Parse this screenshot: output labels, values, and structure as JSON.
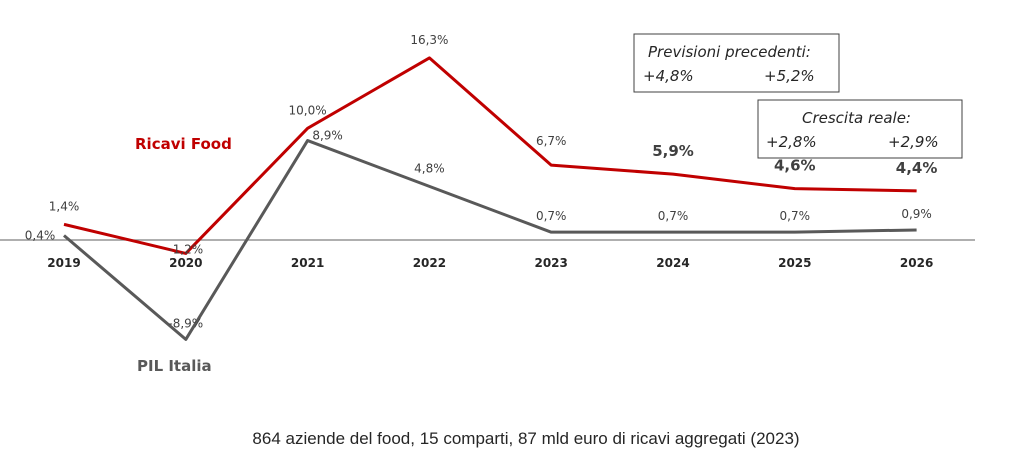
{
  "chart_data": {
    "type": "line",
    "categories": [
      "2019",
      "2020",
      "2021",
      "2022",
      "2023",
      "2024",
      "2025",
      "2026"
    ],
    "series": [
      {
        "name": "Ricavi Food",
        "color": "#c00000",
        "values": [
          1.4,
          -1.2,
          10.0,
          16.3,
          6.7,
          5.9,
          4.6,
          4.4
        ],
        "labels": [
          "1,4%",
          "-1,2%",
          "10,0%",
          "16,3%",
          "6,7%",
          "5,9%",
          "4,6%",
          "4,4%"
        ]
      },
      {
        "name": "PIL Italia",
        "color": "#595959",
        "values": [
          0.4,
          -8.9,
          8.9,
          4.8,
          0.7,
          0.7,
          0.7,
          0.9
        ],
        "labels": [
          "0,4%",
          "-8,9%",
          "8,9%",
          "4,8%",
          "0,7%",
          "0,7%",
          "0,7%",
          "0,9%"
        ]
      }
    ],
    "grid": false,
    "annotations": {
      "previous_forecasts": {
        "title": "Previsioni precedenti:",
        "values": [
          "+4,8%",
          "+5,2%"
        ]
      },
      "real_growth": {
        "title": "Crescita reale:",
        "values": [
          "+2,8%",
          "+2,9%"
        ]
      }
    },
    "caption": "864 aziende del food, 15 comparti, 87 mld euro di ricavi aggregati (2023)"
  }
}
